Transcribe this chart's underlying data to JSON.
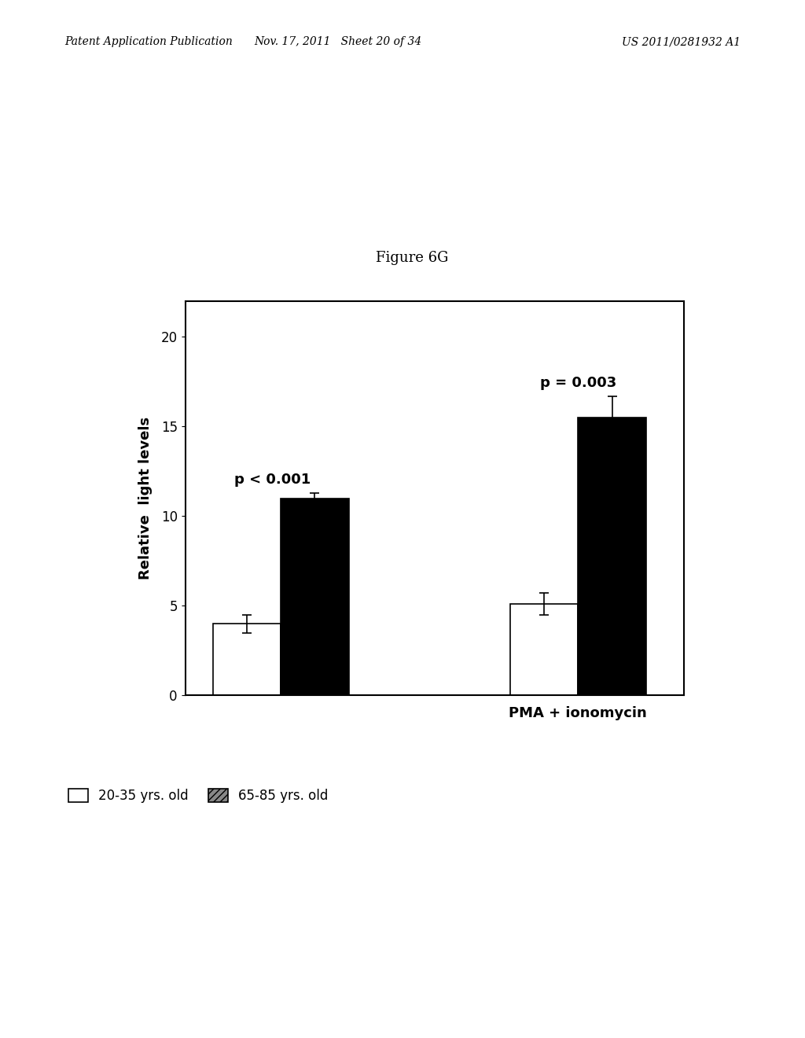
{
  "title": "Figure 6G",
  "ylabel": "Relative  light levels",
  "xlabel_group2": "PMA + ionomycin",
  "ylim": [
    0,
    22
  ],
  "yticks": [
    0,
    5,
    10,
    15,
    20
  ],
  "bar_values": [
    [
      4.0,
      11.0
    ],
    [
      5.1,
      15.5
    ]
  ],
  "bar_errors": [
    [
      0.5,
      0.3
    ],
    [
      0.6,
      1.2
    ]
  ],
  "bar_colors": [
    "white",
    "black"
  ],
  "bar_edgecolors": [
    "black",
    "black"
  ],
  "annotation_group0": "p < 0.001",
  "annotation_group1": "p = 0.003",
  "legend_labels": [
    "20-35 yrs. old",
    "65-85 yrs. old"
  ],
  "legend_colors": [
    "white",
    "#888888"
  ],
  "legend_edgecolors": [
    "black",
    "black"
  ],
  "legend_hatches": [
    "",
    "////"
  ],
  "figure_width": 10.24,
  "figure_height": 13.2,
  "bar_width": 0.32,
  "group_positions": [
    1.0,
    2.4
  ],
  "title_fontsize": 13,
  "axis_label_fontsize": 13,
  "tick_fontsize": 12,
  "annotation_fontsize": 13,
  "legend_fontsize": 12,
  "header_left": "Patent Application Publication",
  "header_mid": "Nov. 17, 2011   Sheet 20 of 34",
  "header_right": "US 2011/0281932 A1"
}
